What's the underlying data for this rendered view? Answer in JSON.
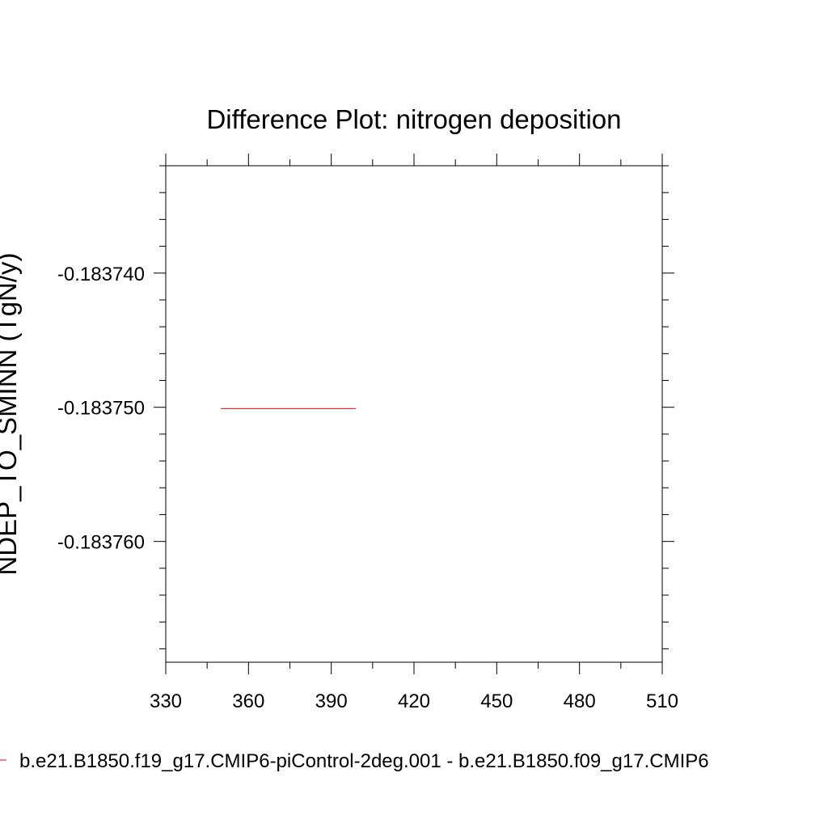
{
  "chart_data": {
    "type": "line",
    "title": "Difference Plot: nitrogen deposition",
    "xlabel": "",
    "ylabel": "NDEP_TO_SMINN  (TgN/y)",
    "xlim": [
      330,
      510
    ],
    "ylim": [
      -0.183769,
      -0.183732
    ],
    "x_ticks": [
      330,
      360,
      390,
      420,
      450,
      480,
      510
    ],
    "x_tick_labels": [
      "330",
      "360",
      "390",
      "420",
      "450",
      "480",
      "510"
    ],
    "y_ticks": [
      -0.18374,
      -0.18375,
      -0.18376
    ],
    "y_tick_labels": [
      "-0.183740",
      "-0.183750",
      "-0.183760"
    ],
    "grid": false,
    "legend_position": "bottom",
    "series": [
      {
        "name": "b.e21.B1850.f19_g17.CMIP6-piControl-2deg.001 - b.e21.B1850.f09_g17.CMIP6",
        "color": "#ff0000",
        "x": [
          350,
          399
        ],
        "y": [
          -0.1837501,
          -0.1837501
        ]
      }
    ]
  }
}
